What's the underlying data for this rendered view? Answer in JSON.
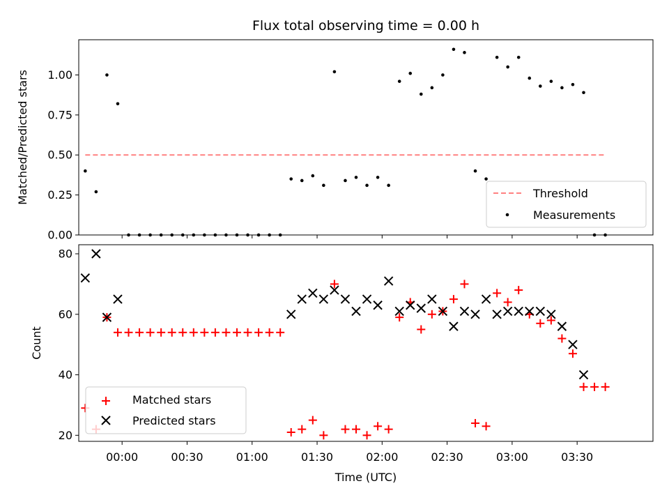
{
  "title": "Flux total observing time = 0.00 h",
  "chart_data": [
    {
      "type": "scatter",
      "ylabel": "Matched/Predicted stars",
      "xlabel": "",
      "xlim": [
        "23:40",
        "04:05"
      ],
      "ylim": [
        0,
        1.22
      ],
      "yticks": [
        "0.00",
        "0.25",
        "0.50",
        "0.75",
        "1.00"
      ],
      "grid": false,
      "legend_position": "lower-right",
      "threshold": {
        "name": "Threshold",
        "value": 0.5,
        "x_range": [
          "23:43",
          "03:43"
        ],
        "color": "#ff8080"
      },
      "measurements": {
        "name": "Measurements",
        "color": "#000000",
        "x": [
          "23:43",
          "23:48",
          "23:53",
          "23:58",
          "00:03",
          "00:08",
          "00:13",
          "00:18",
          "00:23",
          "00:28",
          "00:33",
          "00:38",
          "00:43",
          "00:48",
          "00:53",
          "00:58",
          "01:03",
          "01:08",
          "01:13",
          "01:18",
          "01:23",
          "01:28",
          "01:33",
          "01:38",
          "01:43",
          "01:48",
          "01:53",
          "01:58",
          "02:03",
          "02:08",
          "02:13",
          "02:18",
          "02:23",
          "02:28",
          "02:33",
          "02:38",
          "02:43",
          "02:48",
          "02:53",
          "02:58",
          "03:03",
          "03:08",
          "03:13",
          "03:18",
          "03:23",
          "03:28",
          "03:33",
          "03:38",
          "03:43"
        ],
        "y": [
          0.4,
          0.27,
          1.0,
          0.82,
          0.0,
          0.0,
          0.0,
          0.0,
          0.0,
          0.0,
          0.0,
          0.0,
          0.0,
          0.0,
          0.0,
          0.0,
          0.0,
          0.0,
          0.0,
          0.35,
          0.34,
          0.37,
          0.31,
          1.02,
          0.34,
          0.36,
          0.31,
          0.36,
          0.31,
          0.96,
          1.01,
          0.88,
          0.92,
          1.0,
          1.16,
          1.14,
          0.4,
          0.35,
          1.11,
          1.05,
          1.11,
          0.98,
          0.93,
          0.96,
          0.92,
          0.94,
          0.89,
          0.0,
          0.0
        ]
      }
    },
    {
      "type": "scatter",
      "xlabel": "Time (UTC)",
      "ylabel": "Count",
      "xlim": [
        "23:40",
        "04:05"
      ],
      "ylim": [
        18,
        83
      ],
      "yticks": [
        "20",
        "40",
        "60",
        "80"
      ],
      "xticks": [
        "00:00",
        "00:30",
        "01:00",
        "01:30",
        "02:00",
        "02:30",
        "03:00",
        "03:30"
      ],
      "grid": false,
      "legend_position": "lower-left",
      "series": [
        {
          "name": "Matched stars",
          "marker": "+",
          "color": "#ff0000",
          "x": [
            "23:43",
            "23:48",
            "23:53",
            "23:58",
            "00:03",
            "00:08",
            "00:13",
            "00:18",
            "00:23",
            "00:28",
            "00:33",
            "00:38",
            "00:43",
            "00:48",
            "00:53",
            "00:58",
            "01:03",
            "01:08",
            "01:13",
            "01:18",
            "01:23",
            "01:28",
            "01:33",
            "01:38",
            "01:43",
            "01:48",
            "01:53",
            "01:58",
            "02:03",
            "02:08",
            "02:13",
            "02:18",
            "02:23",
            "02:28",
            "02:33",
            "02:38",
            "02:43",
            "02:48",
            "02:53",
            "02:58",
            "03:03",
            "03:08",
            "03:13",
            "03:18",
            "03:23",
            "03:28",
            "03:33",
            "03:38",
            "03:43"
          ],
          "y": [
            29,
            22,
            59,
            54,
            54,
            54,
            54,
            54,
            54,
            54,
            54,
            54,
            54,
            54,
            54,
            54,
            54,
            54,
            54,
            21,
            22,
            25,
            20,
            70,
            22,
            22,
            20,
            23,
            22,
            59,
            64,
            55,
            60,
            61,
            65,
            70,
            24,
            23,
            67,
            64,
            68,
            60,
            57,
            58,
            52,
            47,
            36,
            36,
            36
          ]
        },
        {
          "name": "Predicted stars",
          "marker": "x",
          "color": "#000000",
          "x": [
            "23:43",
            "23:48",
            "23:53",
            "23:58",
            "01:18",
            "01:23",
            "01:28",
            "01:33",
            "01:38",
            "01:43",
            "01:48",
            "01:53",
            "01:58",
            "02:03",
            "02:08",
            "02:13",
            "02:18",
            "02:23",
            "02:28",
            "02:33",
            "02:38",
            "02:43",
            "02:48",
            "02:53",
            "02:58",
            "03:03",
            "03:08",
            "03:13",
            "03:18",
            "03:23",
            "03:28",
            "03:33"
          ],
          "y": [
            72,
            80,
            59,
            65,
            60,
            65,
            67,
            65,
            68,
            65,
            61,
            65,
            63,
            71,
            61,
            63,
            62,
            65,
            61,
            56,
            61,
            60,
            65,
            60,
            61,
            61,
            61,
            61,
            60,
            56,
            50,
            40
          ]
        }
      ]
    }
  ]
}
